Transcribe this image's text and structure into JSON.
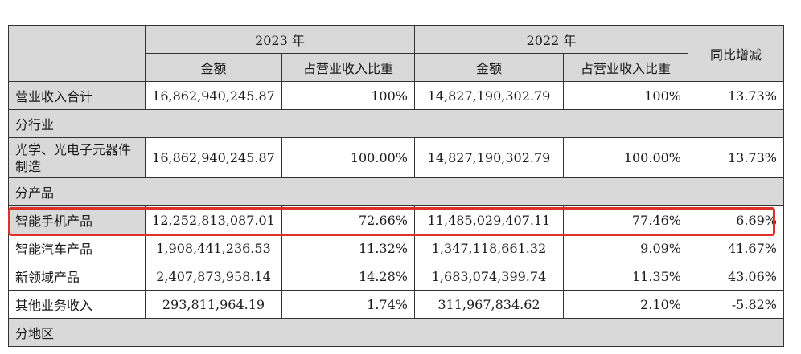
{
  "header": {
    "year_2023": "2023 年",
    "year_2022": "2022 年",
    "amount_2023": "金额",
    "share_2023": "占营业收入比重",
    "amount_2022": "金额",
    "share_2022": "占营业收入比重",
    "yoy": "同比增减"
  },
  "total": {
    "label": "营业收入合计",
    "amount_2023": "16,862,940,245.87",
    "share_2023": "100%",
    "amount_2022": "14,827,190,302.79",
    "share_2022": "100%",
    "yoy": "13.73%"
  },
  "sections": {
    "industry": "分行业",
    "product": "分产品",
    "region": "分地区"
  },
  "industry_rows": [
    {
      "label": "光学、光电子元器件制造",
      "amount_2023": "16,862,940,245.87",
      "share_2023": "100.00%",
      "amount_2022": "14,827,190,302.79",
      "share_2022": "100.00%",
      "yoy": "13.73%"
    }
  ],
  "product_rows": [
    {
      "label": "智能手机产品",
      "amount_2023": "12,252,813,087.01",
      "share_2023": "72.66%",
      "amount_2022": "11,485,029,407.11",
      "share_2022": "77.46%",
      "yoy": "6.69%"
    },
    {
      "label": "智能汽车产品",
      "amount_2023": "1,908,441,236.53",
      "share_2023": "11.32%",
      "amount_2022": "1,347,118,661.32",
      "share_2022": "9.09%",
      "yoy": "41.67%"
    },
    {
      "label": "新领域产品",
      "amount_2023": "2,407,873,958.14",
      "share_2023": "14.28%",
      "amount_2022": "1,683,074,399.74",
      "share_2022": "11.35%",
      "yoy": "43.06%"
    },
    {
      "label": "其他业务收入",
      "amount_2023": "293,811,964.19",
      "share_2023": "1.74%",
      "amount_2022": "311,967,834.62",
      "share_2022": "2.10%",
      "yoy": "-5.82%"
    }
  ],
  "colors": {
    "header_fill": "#d9d9d9",
    "highlight_box": "#e0302b"
  }
}
